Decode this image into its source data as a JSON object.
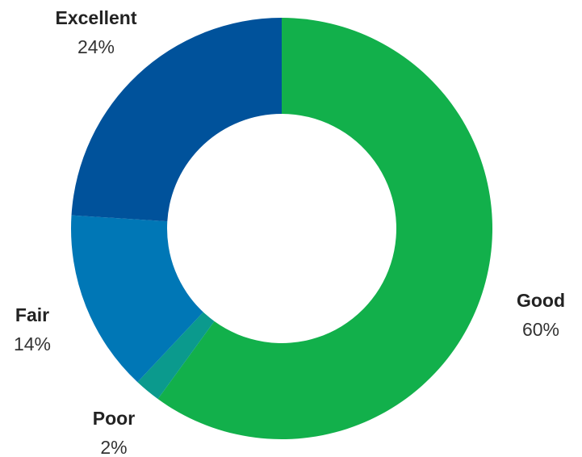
{
  "chart_data": {
    "type": "pie",
    "style": "donut",
    "start_angle_deg": 0,
    "direction": "clockwise",
    "slices": [
      {
        "label": "Good",
        "value": 60,
        "display": "60%",
        "color": "#12b04b"
      },
      {
        "label": "Poor",
        "value": 2,
        "display": "2%",
        "color": "#0b9a8d"
      },
      {
        "label": "Fair",
        "value": 14,
        "display": "14%",
        "color": "#0077b6"
      },
      {
        "label": "Excellent",
        "value": 24,
        "display": "24%",
        "color": "#00529b"
      }
    ]
  }
}
